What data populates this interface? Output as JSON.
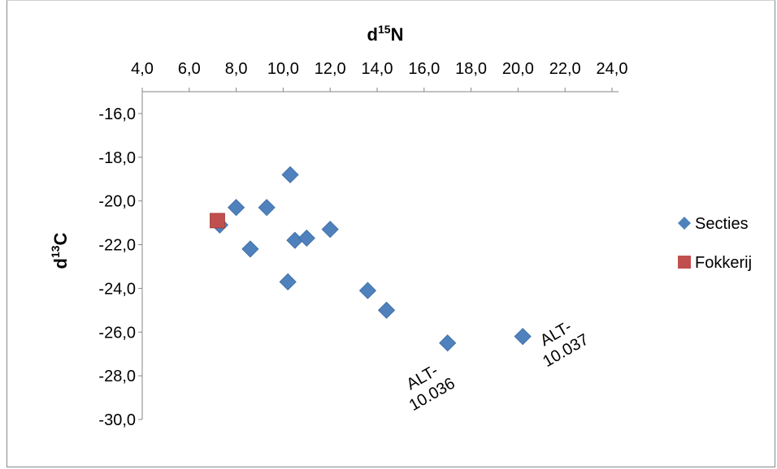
{
  "chart_data": {
    "type": "scatter",
    "title": "",
    "xlabel": {
      "base": "d",
      "sup": "15",
      "rest": "N"
    },
    "ylabel": {
      "base": "d",
      "sup": "13",
      "rest": "C"
    },
    "xlim": [
      4,
      24
    ],
    "ylim": [
      -30,
      -15
    ],
    "x_ticks": [
      "4,0",
      "6,0",
      "8,0",
      "10,0",
      "12,0",
      "14,0",
      "16,0",
      "18,0",
      "20,0",
      "22,0",
      "24,0"
    ],
    "x_tick_values": [
      4,
      6,
      8,
      10,
      12,
      14,
      16,
      18,
      20,
      22,
      24
    ],
    "y_ticks": [
      "-16,0",
      "-18,0",
      "-20,0",
      "-22,0",
      "-24,0",
      "-26,0",
      "-28,0",
      "-30,0"
    ],
    "y_tick_values": [
      -16,
      -18,
      -20,
      -22,
      -24,
      -26,
      -28,
      -30
    ],
    "x_axis_position": "top",
    "grid": false,
    "legend_position": "right",
    "series": [
      {
        "name": "Secties",
        "marker": "diamond",
        "color": "#4f81bd",
        "points": [
          {
            "x": 7.3,
            "y": -21.1
          },
          {
            "x": 8.0,
            "y": -20.3
          },
          {
            "x": 8.6,
            "y": -22.2
          },
          {
            "x": 9.3,
            "y": -20.3
          },
          {
            "x": 10.2,
            "y": -23.7
          },
          {
            "x": 10.3,
            "y": -18.8
          },
          {
            "x": 10.5,
            "y": -21.8
          },
          {
            "x": 11.0,
            "y": -21.7
          },
          {
            "x": 12.0,
            "y": -21.3
          },
          {
            "x": 13.6,
            "y": -24.1
          },
          {
            "x": 14.4,
            "y": -25.0
          },
          {
            "x": 17.0,
            "y": -26.5
          },
          {
            "x": 20.2,
            "y": -26.2
          }
        ]
      },
      {
        "name": "Fokkerij",
        "marker": "square",
        "color": "#c0504d",
        "points": [
          {
            "x": 7.2,
            "y": -20.9
          }
        ]
      }
    ],
    "annotations": [
      {
        "lines": [
          "ALT-",
          "10.036"
        ],
        "x": 17.0,
        "y": -26.5
      },
      {
        "lines": [
          "ALT-",
          "10.037"
        ],
        "x": 20.2,
        "y": -26.2
      }
    ]
  }
}
